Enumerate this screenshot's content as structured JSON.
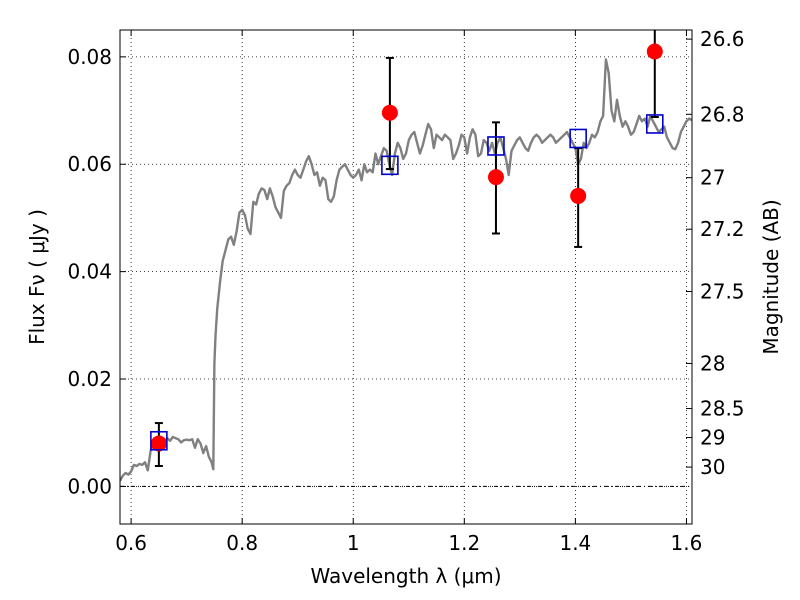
{
  "chart_data": {
    "type": "scatter",
    "title": "",
    "xlabel": "Wavelength  λ (μm)",
    "ylabel": "Flux  Fν  ( μJy )",
    "ylabel_right": "Magnitude (AB)",
    "xlim": [
      0.58,
      1.61
    ],
    "ylim": [
      -0.007,
      0.085
    ],
    "grid": true,
    "x_ticks": [
      0.6,
      0.8,
      1.0,
      1.2,
      1.4,
      1.6
    ],
    "x_tick_labels": [
      "0.6",
      "0.8",
      "1",
      "1.2",
      "1.4",
      "1.6"
    ],
    "y_ticks": [
      0.0,
      0.02,
      0.04,
      0.06,
      0.08
    ],
    "y_tick_labels": [
      "0.00",
      "0.02",
      "0.04",
      "0.06",
      "0.08"
    ],
    "right_ticks": [
      {
        "label": "26.6",
        "flux": 0.0833
      },
      {
        "label": "26.8",
        "flux": 0.0693
      },
      {
        "label": "27",
        "flux": 0.0575
      },
      {
        "label": "27.2",
        "flux": 0.0479
      },
      {
        "label": "27.5",
        "flux": 0.0363
      },
      {
        "label": "28",
        "flux": 0.0229
      },
      {
        "label": "28.5",
        "flux": 0.0145
      },
      {
        "label": "29",
        "flux": 0.0091
      },
      {
        "label": "30",
        "flux": 0.0036
      }
    ],
    "model_color": "#808080",
    "observed_color": "#ff0000",
    "synthetic_color": "#0000cc",
    "errorbar_color": "#000000",
    "observed": [
      {
        "x": 0.65,
        "y": 0.008,
        "yerr_low": 0.0042,
        "yerr_high": 0.0038
      },
      {
        "x": 1.066,
        "y": 0.0696,
        "yerr_low": 0.0105,
        "yerr_high": 0.0102
      },
      {
        "x": 1.257,
        "y": 0.0576,
        "yerr_low": 0.0105,
        "yerr_high": 0.0102
      },
      {
        "x": 1.405,
        "y": 0.0541,
        "yerr_low": 0.0095,
        "yerr_high": 0.0089
      },
      {
        "x": 1.543,
        "y": 0.081,
        "yerr_low": 0.0122,
        "yerr_high": 0.009
      }
    ],
    "synthetic": [
      {
        "x": 0.65,
        "y": 0.0085
      },
      {
        "x": 1.066,
        "y": 0.0598
      },
      {
        "x": 1.257,
        "y": 0.0634
      },
      {
        "x": 1.405,
        "y": 0.0648
      },
      {
        "x": 1.543,
        "y": 0.0675
      }
    ],
    "model_spectrum": {
      "x": [
        0.58,
        0.585,
        0.59,
        0.595,
        0.6,
        0.605,
        0.61,
        0.615,
        0.62,
        0.625,
        0.63,
        0.635,
        0.64,
        0.645,
        0.65,
        0.655,
        0.66,
        0.665,
        0.67,
        0.675,
        0.68,
        0.685,
        0.69,
        0.695,
        0.7,
        0.705,
        0.71,
        0.715,
        0.72,
        0.725,
        0.73,
        0.735,
        0.74,
        0.745,
        0.748,
        0.75,
        0.752,
        0.755,
        0.76,
        0.765,
        0.77,
        0.775,
        0.78,
        0.785,
        0.79,
        0.795,
        0.8,
        0.805,
        0.81,
        0.815,
        0.82,
        0.825,
        0.83,
        0.835,
        0.84,
        0.845,
        0.85,
        0.855,
        0.86,
        0.865,
        0.87,
        0.875,
        0.88,
        0.885,
        0.89,
        0.895,
        0.9,
        0.905,
        0.91,
        0.915,
        0.92,
        0.925,
        0.93,
        0.935,
        0.94,
        0.945,
        0.95,
        0.955,
        0.96,
        0.965,
        0.97,
        0.975,
        0.98,
        0.985,
        0.99,
        0.995,
        1.0,
        1.005,
        1.01,
        1.015,
        1.02,
        1.025,
        1.03,
        1.035,
        1.04,
        1.045,
        1.05,
        1.055,
        1.06,
        1.065,
        1.07,
        1.075,
        1.08,
        1.085,
        1.09,
        1.095,
        1.1,
        1.105,
        1.11,
        1.115,
        1.12,
        1.125,
        1.13,
        1.135,
        1.14,
        1.145,
        1.15,
        1.155,
        1.16,
        1.165,
        1.17,
        1.175,
        1.18,
        1.185,
        1.19,
        1.195,
        1.2,
        1.205,
        1.21,
        1.215,
        1.22,
        1.225,
        1.23,
        1.235,
        1.24,
        1.245,
        1.25,
        1.255,
        1.26,
        1.265,
        1.27,
        1.275,
        1.28,
        1.285,
        1.29,
        1.295,
        1.3,
        1.305,
        1.31,
        1.315,
        1.32,
        1.325,
        1.33,
        1.335,
        1.34,
        1.345,
        1.35,
        1.355,
        1.36,
        1.365,
        1.37,
        1.375,
        1.38,
        1.385,
        1.39,
        1.395,
        1.4,
        1.405,
        1.41,
        1.415,
        1.42,
        1.425,
        1.43,
        1.435,
        1.44,
        1.445,
        1.45,
        1.455,
        1.46,
        1.465,
        1.47,
        1.475,
        1.48,
        1.485,
        1.49,
        1.495,
        1.5,
        1.505,
        1.51,
        1.515,
        1.52,
        1.525,
        1.53,
        1.535,
        1.54,
        1.545,
        1.55,
        1.555,
        1.56,
        1.565,
        1.57,
        1.575,
        1.58,
        1.585,
        1.59,
        1.595,
        1.6,
        1.605,
        1.61
      ],
      "y": [
        0.001,
        0.002,
        0.0025,
        0.0022,
        0.0028,
        0.004,
        0.0038,
        0.0042,
        0.004,
        0.0045,
        0.003,
        0.0065,
        0.0085,
        0.007,
        0.008,
        0.0088,
        0.0082,
        0.009,
        0.0085,
        0.0092,
        0.009,
        0.0088,
        0.0082,
        0.0086,
        0.0087,
        0.0086,
        0.0088,
        0.0072,
        0.0088,
        0.008,
        0.0062,
        0.0075,
        0.0055,
        0.0045,
        0.0032,
        0.023,
        0.028,
        0.033,
        0.038,
        0.042,
        0.044,
        0.046,
        0.0465,
        0.045,
        0.0475,
        0.051,
        0.0515,
        0.0505,
        0.048,
        0.047,
        0.053,
        0.0525,
        0.0545,
        0.0555,
        0.0552,
        0.0535,
        0.0555,
        0.054,
        0.052,
        0.051,
        0.05,
        0.055,
        0.056,
        0.0565,
        0.058,
        0.059,
        0.058,
        0.0575,
        0.059,
        0.0605,
        0.0615,
        0.06,
        0.058,
        0.0585,
        0.056,
        0.0575,
        0.057,
        0.0535,
        0.053,
        0.054,
        0.057,
        0.059,
        0.0595,
        0.06,
        0.059,
        0.058,
        0.0575,
        0.058,
        0.059,
        0.057,
        0.06,
        0.0585,
        0.059,
        0.0585,
        0.062,
        0.06,
        0.0615,
        0.063,
        0.0625,
        0.06,
        0.058,
        0.062,
        0.064,
        0.063,
        0.061,
        0.062,
        0.0645,
        0.0655,
        0.066,
        0.064,
        0.062,
        0.0635,
        0.0655,
        0.0675,
        0.0665,
        0.063,
        0.0655,
        0.065,
        0.0645,
        0.0655,
        0.065,
        0.0645,
        0.061,
        0.062,
        0.0635,
        0.0655,
        0.065,
        0.062,
        0.065,
        0.0665,
        0.0655,
        0.0615,
        0.062,
        0.0645,
        0.064,
        0.0625,
        0.064,
        0.062,
        0.064,
        0.065,
        0.063,
        0.061,
        0.058,
        0.0625,
        0.0635,
        0.0645,
        0.065,
        0.064,
        0.063,
        0.0625,
        0.064,
        0.065,
        0.0655,
        0.065,
        0.064,
        0.0645,
        0.065,
        0.0655,
        0.065,
        0.064,
        0.0645,
        0.065,
        0.0655,
        0.066,
        0.065,
        0.064,
        0.063,
        0.06,
        0.061,
        0.064,
        0.063,
        0.064,
        0.0655,
        0.065,
        0.066,
        0.068,
        0.069,
        0.0795,
        0.077,
        0.07,
        0.068,
        0.072,
        0.069,
        0.067,
        0.068,
        0.067,
        0.0655,
        0.066,
        0.0675,
        0.069,
        0.068,
        0.0685,
        0.067,
        0.069,
        0.068,
        0.067,
        0.066,
        0.0665,
        0.067,
        0.065,
        0.064,
        0.063,
        0.0628,
        0.064,
        0.066,
        0.067,
        0.068,
        0.0685,
        0.0682
      ]
    }
  }
}
